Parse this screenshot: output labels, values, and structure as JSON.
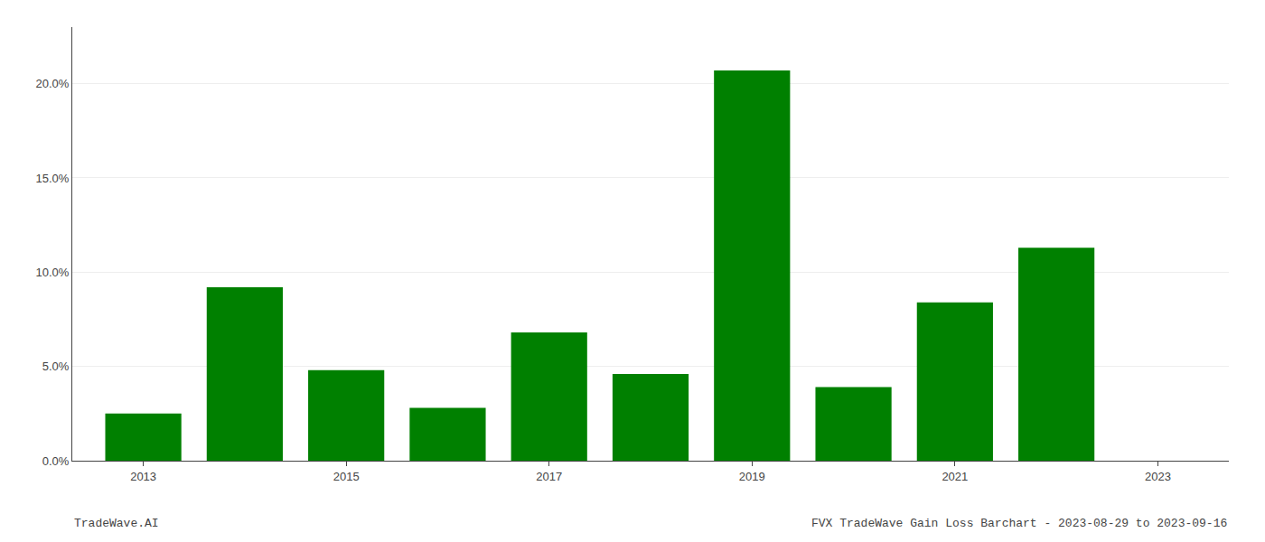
{
  "chart_data": {
    "type": "bar",
    "x": [
      2013,
      2014,
      2015,
      2016,
      2017,
      2018,
      2019,
      2020,
      2021,
      2022
    ],
    "values": [
      0.025,
      0.092,
      0.048,
      0.028,
      0.068,
      0.046,
      0.207,
      0.039,
      0.084,
      0.113
    ],
    "color": "#008000",
    "xlim": [
      2012.3,
      2023.7
    ],
    "xticks": [
      2013,
      2015,
      2017,
      2019,
      2021,
      2023
    ],
    "ylim": [
      0.0,
      0.23
    ],
    "yticks": [
      {
        "value": 0.0,
        "label": "0.0%"
      },
      {
        "value": 0.05,
        "label": "5.0%"
      },
      {
        "value": 0.1,
        "label": "10.0%"
      },
      {
        "value": 0.15,
        "label": "15.0%"
      },
      {
        "value": 0.2,
        "label": "20.0%"
      }
    ],
    "grid": true,
    "annotations": [
      "TradeWave.AI",
      "FVX TradeWave Gain Loss Barchart - 2023-08-29 to 2023-09-16"
    ]
  }
}
